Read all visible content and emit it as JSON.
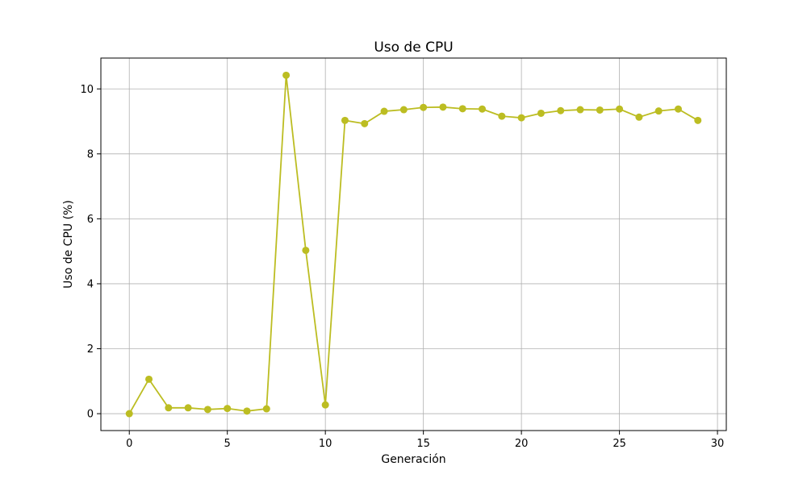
{
  "chart_data": {
    "type": "line",
    "title": "Uso de CPU",
    "xlabel": "Generación",
    "ylabel": "Uso de CPU (%)",
    "xlim": [
      -1.45,
      30.45
    ],
    "ylim": [
      -0.52,
      10.95
    ],
    "xticks": [
      0,
      5,
      10,
      15,
      20,
      25,
      30
    ],
    "yticks": [
      0,
      2,
      4,
      6,
      8,
      10
    ],
    "grid": true,
    "series": [
      {
        "color": "#bcbd22",
        "marker": "circle",
        "x": [
          0,
          1,
          2,
          3,
          4,
          5,
          6,
          7,
          8,
          9,
          10,
          11,
          12,
          13,
          14,
          15,
          16,
          17,
          18,
          19,
          20,
          21,
          22,
          23,
          24,
          25,
          26,
          27,
          28,
          29
        ],
        "values": [
          0.0,
          1.06,
          0.18,
          0.18,
          0.13,
          0.16,
          0.08,
          0.15,
          10.42,
          5.03,
          0.27,
          9.03,
          8.93,
          9.31,
          9.36,
          9.43,
          9.44,
          9.39,
          9.38,
          9.16,
          9.11,
          9.25,
          9.33,
          9.36,
          9.35,
          9.38,
          9.13,
          9.32,
          9.38,
          9.03
        ]
      }
    ]
  }
}
